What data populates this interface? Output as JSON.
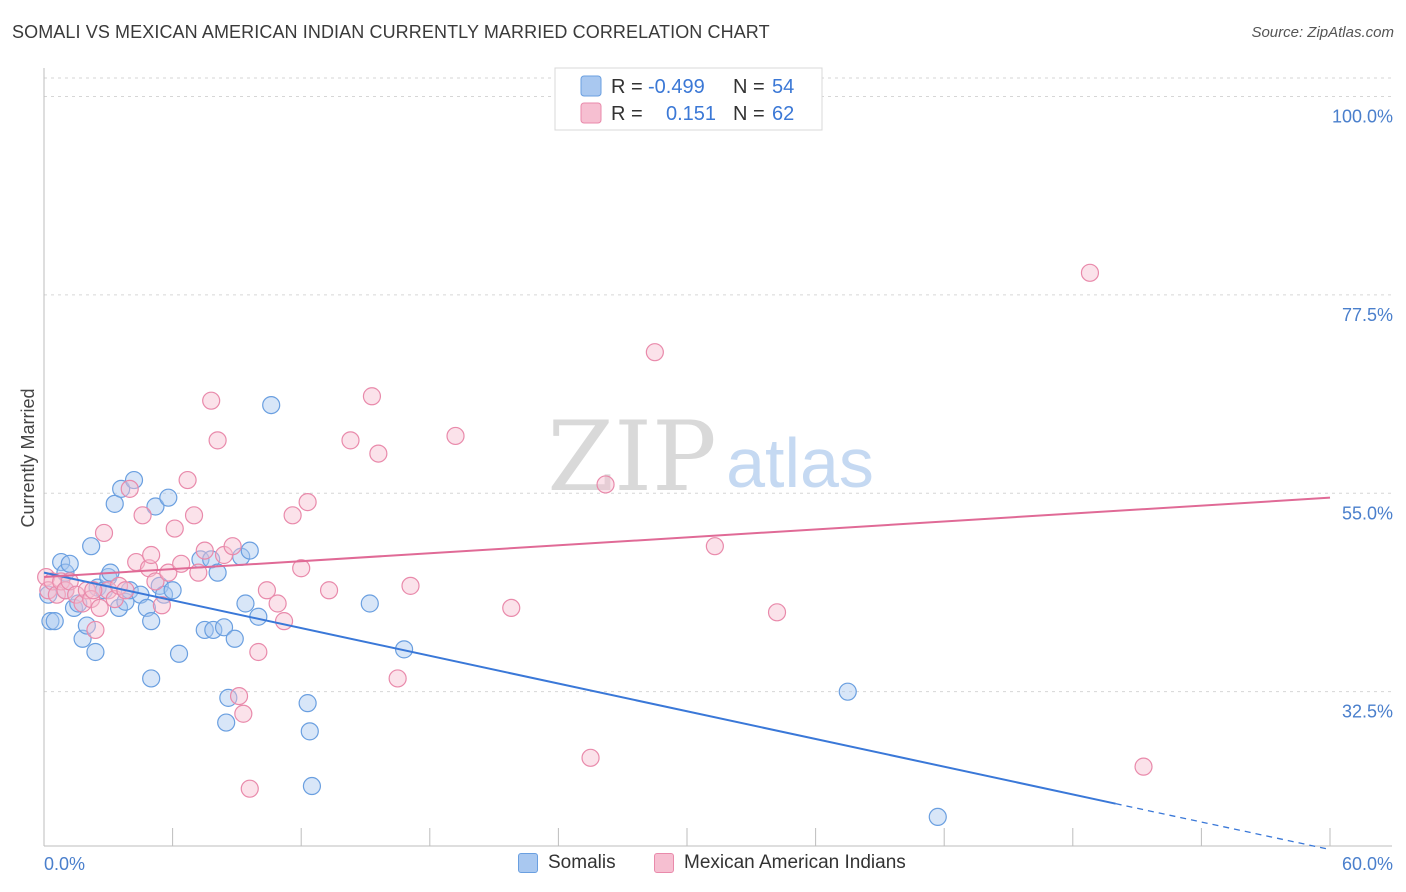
{
  "title": "SOMALI VS MEXICAN AMERICAN INDIAN CURRENTLY MARRIED CORRELATION CHART",
  "source": "Source: ZipAtlas.com",
  "watermark": {
    "zip": "ZIP",
    "atlas": "atlas"
  },
  "legend_box": {
    "rows": [
      {
        "r_label": "R =",
        "r_value": "-0.499",
        "n_label": "N =",
        "n_value": "54",
        "color": "#a9c8f0",
        "border": "#6a9fe0"
      },
      {
        "r_label": "R =",
        "r_value": "0.151",
        "n_label": "N =",
        "n_value": "62",
        "color": "#f6bfd1",
        "border": "#e98aab"
      }
    ]
  },
  "bottom_legend": [
    {
      "label": "Somalis",
      "color": "#a9c8f0",
      "border": "#6a9fe0"
    },
    {
      "label": "Mexican American Indians",
      "color": "#f6bfd1",
      "border": "#e98aab"
    }
  ],
  "chart_data": {
    "type": "scatter",
    "ylabel": "Currently Married",
    "xlabel": "",
    "xlim": [
      0,
      60
    ],
    "ylim": [
      15,
      103
    ],
    "x_tick_labels": [
      {
        "value": 0,
        "label": "0.0%"
      },
      {
        "value": 60,
        "label": "60.0%"
      }
    ],
    "y_tick_labels": [
      {
        "value": 100,
        "label": "100.0%"
      },
      {
        "value": 77.5,
        "label": "77.5%"
      },
      {
        "value": 55,
        "label": "55.0%"
      },
      {
        "value": 32.5,
        "label": "32.5%"
      }
    ],
    "grid": true,
    "series": [
      {
        "name": "Somalis",
        "color": "#6a9fe0",
        "fill": "#a9c8f0",
        "trend": {
          "x0": 0,
          "y0": 46.0,
          "x1": 50,
          "y1": 19.8,
          "dash_x1": 60,
          "dash_y1": 14.6,
          "color": "#3a78d8"
        },
        "points": [
          [
            0.2,
            43.5
          ],
          [
            0.3,
            40.5
          ],
          [
            0.5,
            40.5
          ],
          [
            0.8,
            47.2
          ],
          [
            1.0,
            46.0
          ],
          [
            1.0,
            44.0
          ],
          [
            1.2,
            47.0
          ],
          [
            1.4,
            42.0
          ],
          [
            1.6,
            42.5
          ],
          [
            1.8,
            38.5
          ],
          [
            2.0,
            40.0
          ],
          [
            2.2,
            49.0
          ],
          [
            2.4,
            37.0
          ],
          [
            2.5,
            44.3
          ],
          [
            2.8,
            44.0
          ],
          [
            3.0,
            45.5
          ],
          [
            3.1,
            46.0
          ],
          [
            3.3,
            53.8
          ],
          [
            3.5,
            42.0
          ],
          [
            3.6,
            55.5
          ],
          [
            3.8,
            42.7
          ],
          [
            4.0,
            44.0
          ],
          [
            4.2,
            56.5
          ],
          [
            4.5,
            43.5
          ],
          [
            4.8,
            42.0
          ],
          [
            5.0,
            40.5
          ],
          [
            5.2,
            53.5
          ],
          [
            5.4,
            44.5
          ],
          [
            5.6,
            43.5
          ],
          [
            5.8,
            54.5
          ],
          [
            6.0,
            44.0
          ],
          [
            6.3,
            36.8
          ],
          [
            7.3,
            47.5
          ],
          [
            7.5,
            39.5
          ],
          [
            7.8,
            47.5
          ],
          [
            7.9,
            39.5
          ],
          [
            8.1,
            46.0
          ],
          [
            8.4,
            39.8
          ],
          [
            8.5,
            29.0
          ],
          [
            8.6,
            31.8
          ],
          [
            8.9,
            38.5
          ],
          [
            9.2,
            47.8
          ],
          [
            9.4,
            42.5
          ],
          [
            9.6,
            48.5
          ],
          [
            10.0,
            41.0
          ],
          [
            10.6,
            65.0
          ],
          [
            12.3,
            31.2
          ],
          [
            12.4,
            28.0
          ],
          [
            12.5,
            21.8
          ],
          [
            15.2,
            42.5
          ],
          [
            16.8,
            37.3
          ],
          [
            37.5,
            32.5
          ],
          [
            41.7,
            18.3
          ],
          [
            5.0,
            34.0
          ]
        ]
      },
      {
        "name": "Mexican American Indians",
        "color": "#e98aab",
        "fill": "#f6bfd1",
        "trend": {
          "x0": 0,
          "y0": 45.5,
          "x1": 60,
          "y1": 54.5,
          "color": "#e06a96"
        },
        "points": [
          [
            0.1,
            45.5
          ],
          [
            0.2,
            44.0
          ],
          [
            0.4,
            45.0
          ],
          [
            0.6,
            43.5
          ],
          [
            0.8,
            45.0
          ],
          [
            1.0,
            44.0
          ],
          [
            1.2,
            45.0
          ],
          [
            1.5,
            43.5
          ],
          [
            1.8,
            42.5
          ],
          [
            2.0,
            44.0
          ],
          [
            2.2,
            43.0
          ],
          [
            2.4,
            39.5
          ],
          [
            2.6,
            42.0
          ],
          [
            2.8,
            50.5
          ],
          [
            3.0,
            44.0
          ],
          [
            3.3,
            43.0
          ],
          [
            3.5,
            44.5
          ],
          [
            3.8,
            44.0
          ],
          [
            4.0,
            55.5
          ],
          [
            4.3,
            47.2
          ],
          [
            4.6,
            52.5
          ],
          [
            4.9,
            46.5
          ],
          [
            5.2,
            45.0
          ],
          [
            5.5,
            42.3
          ],
          [
            5.8,
            46.0
          ],
          [
            6.1,
            51.0
          ],
          [
            6.4,
            47.0
          ],
          [
            6.7,
            56.5
          ],
          [
            7.0,
            52.5
          ],
          [
            7.2,
            46.0
          ],
          [
            7.5,
            48.5
          ],
          [
            7.8,
            65.5
          ],
          [
            8.1,
            61.0
          ],
          [
            8.4,
            48.0
          ],
          [
            8.8,
            49.0
          ],
          [
            9.1,
            32.0
          ],
          [
            9.3,
            30.0
          ],
          [
            9.6,
            21.5
          ],
          [
            10.0,
            37.0
          ],
          [
            10.4,
            44.0
          ],
          [
            10.9,
            42.5
          ],
          [
            11.2,
            40.5
          ],
          [
            11.6,
            52.5
          ],
          [
            12.0,
            46.5
          ],
          [
            12.3,
            54.0
          ],
          [
            13.3,
            44.0
          ],
          [
            14.3,
            61.0
          ],
          [
            15.3,
            66.0
          ],
          [
            15.6,
            59.5
          ],
          [
            16.5,
            34.0
          ],
          [
            17.1,
            44.5
          ],
          [
            19.2,
            61.5
          ],
          [
            21.8,
            42.0
          ],
          [
            25.5,
            25.0
          ],
          [
            26.2,
            56.0
          ],
          [
            28.5,
            71.0
          ],
          [
            31.3,
            49.0
          ],
          [
            34.2,
            41.5
          ],
          [
            48.8,
            80.0
          ],
          [
            51.3,
            24.0
          ],
          [
            5.0,
            48.0
          ],
          [
            2.3,
            44.0
          ]
        ]
      }
    ]
  }
}
